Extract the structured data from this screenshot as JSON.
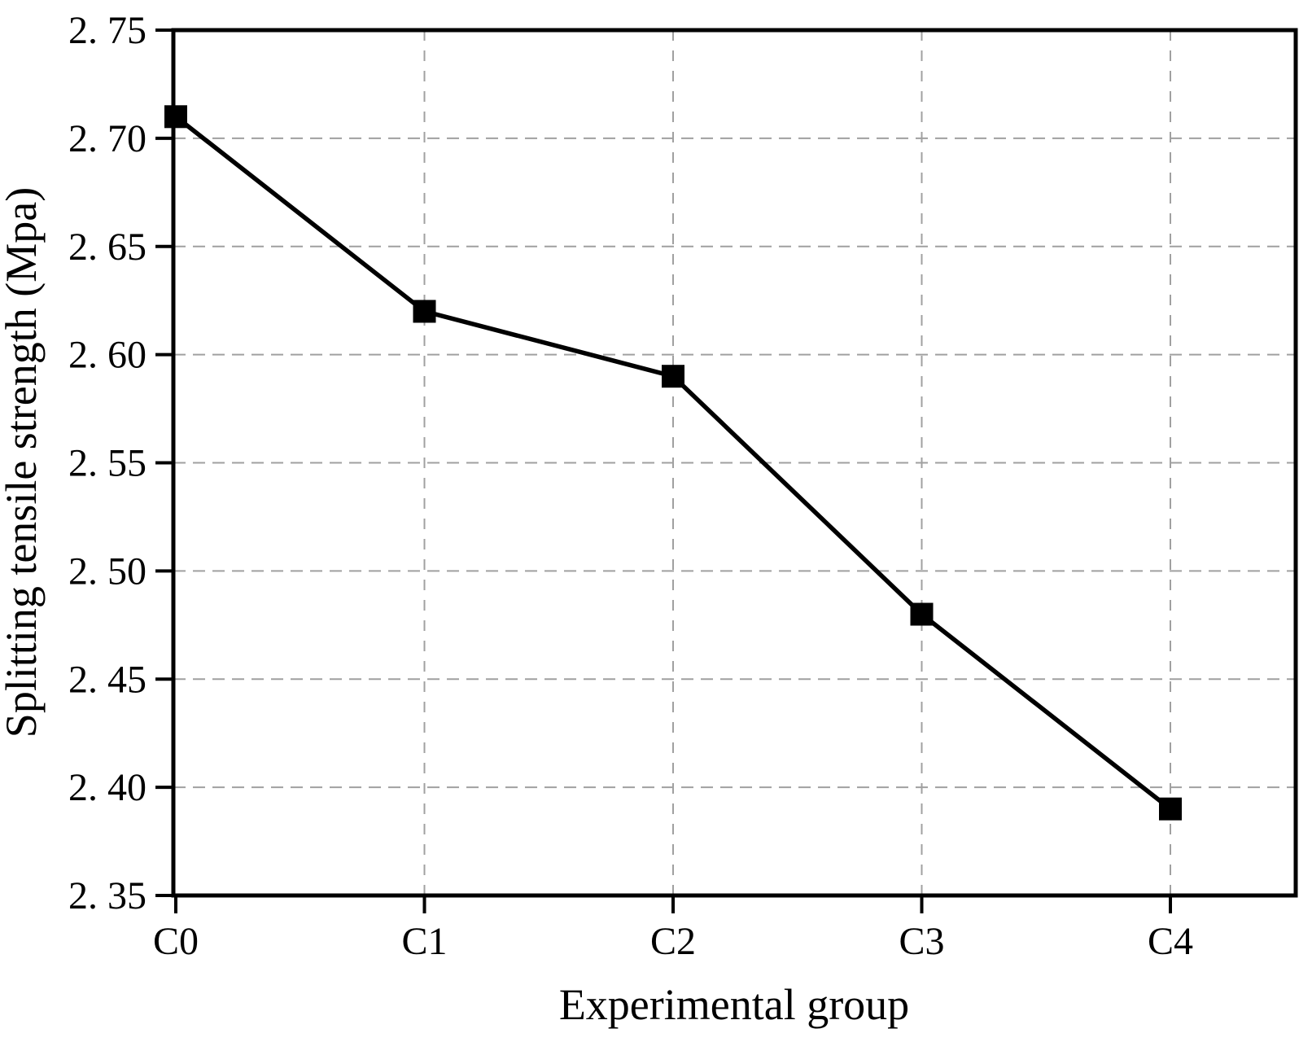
{
  "figure": {
    "background": "#ffffff",
    "text_color": "#000000",
    "axis_color": "#000000",
    "grid_color": "#a0a0a0"
  },
  "chart_data": {
    "type": "line",
    "title": "",
    "xlabel": "Experimental group",
    "ylabel": "Splitting tensile strength (Mpa)",
    "categories": [
      "C0",
      "C1",
      "C2",
      "C3",
      "C4"
    ],
    "series": [
      {
        "name": "Splitting tensile strength",
        "values": [
          2.71,
          2.62,
          2.59,
          2.48,
          2.39
        ],
        "line_color": "#000000",
        "marker": "filled-square",
        "marker_color": "#000000"
      }
    ],
    "ylim": [
      2.35,
      2.75
    ],
    "y_ticks": [
      {
        "value": 2.35,
        "label": "2. 35"
      },
      {
        "value": 2.4,
        "label": "2. 40"
      },
      {
        "value": 2.45,
        "label": "2. 45"
      },
      {
        "value": 2.5,
        "label": "2. 50"
      },
      {
        "value": 2.55,
        "label": "2. 55"
      },
      {
        "value": 2.6,
        "label": "2. 60"
      },
      {
        "value": 2.65,
        "label": "2. 65"
      },
      {
        "value": 2.7,
        "label": "2. 70"
      },
      {
        "value": 2.75,
        "label": "2. 75"
      }
    ],
    "grid": {
      "horizontal": true,
      "vertical": true,
      "style": "dashed",
      "color": "#a0a0a0"
    },
    "legend": "none",
    "frame": "full-box"
  }
}
